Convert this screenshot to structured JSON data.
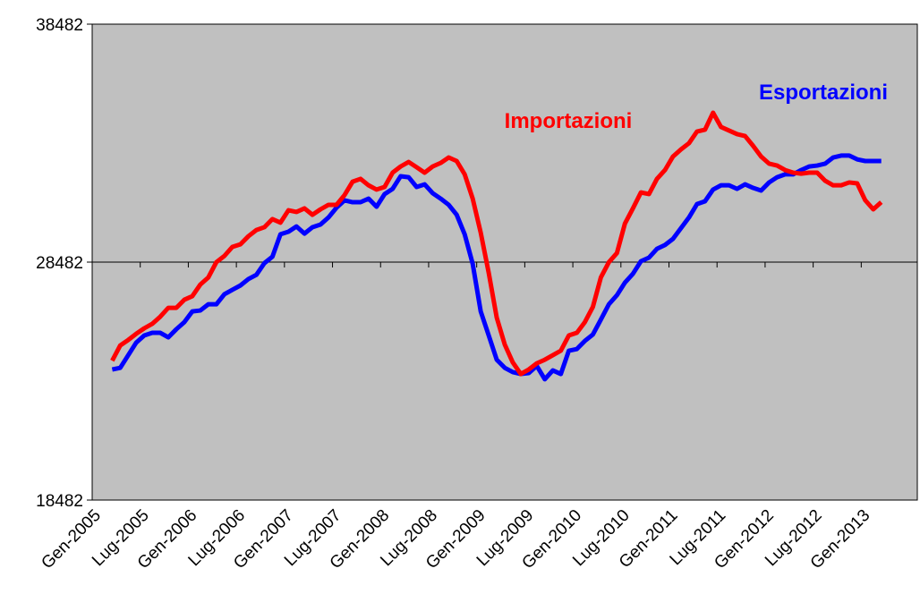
{
  "chart_data": {
    "type": "line",
    "categories": [
      "Gen-2005",
      null,
      null,
      null,
      null,
      null,
      "Lug-2005",
      null,
      null,
      null,
      null,
      null,
      "Gen-2006",
      null,
      null,
      null,
      null,
      null,
      "Lug-2006",
      null,
      null,
      null,
      null,
      null,
      "Gen-2007",
      null,
      null,
      null,
      null,
      null,
      "Lug-2007",
      null,
      null,
      null,
      null,
      null,
      "Gen-2008",
      null,
      null,
      null,
      null,
      null,
      "Lug-2008",
      null,
      null,
      null,
      null,
      null,
      "Gen-2009",
      null,
      null,
      null,
      null,
      null,
      "Lug-2009",
      null,
      null,
      null,
      null,
      null,
      "Gen-2010",
      null,
      null,
      null,
      null,
      null,
      "Lug-2010",
      null,
      null,
      null,
      null,
      null,
      "Gen-2011",
      null,
      null,
      null,
      null,
      null,
      "Lug-2011",
      null,
      null,
      null,
      null,
      null,
      "Gen-2012",
      null,
      null,
      null,
      null,
      null,
      "Lug-2012",
      null,
      null,
      null,
      null,
      null,
      "Gen-2013",
      null,
      null,
      null,
      null,
      null,
      null
    ],
    "series": [
      {
        "name": "Importazioni",
        "color": "#ff0000",
        "values": [
          null,
          null,
          24340,
          24980,
          25210,
          25470,
          25700,
          25890,
          26190,
          26560,
          26560,
          26900,
          27050,
          27540,
          27840,
          28480,
          28740,
          29120,
          29230,
          29570,
          29830,
          29950,
          30290,
          30140,
          30660,
          30590,
          30740,
          30470,
          30700,
          30890,
          30890,
          31300,
          31860,
          31980,
          31710,
          31530,
          31640,
          32240,
          32500,
          32690,
          32470,
          32240,
          32500,
          32650,
          32880,
          32730,
          32170,
          31150,
          29720,
          28030,
          26150,
          25020,
          24270,
          23780,
          23970,
          24230,
          24380,
          24570,
          24760,
          25400,
          25510,
          25960,
          26600,
          27840,
          28480,
          28860,
          30100,
          30740,
          31410,
          31340,
          31980,
          32350,
          32920,
          33220,
          33480,
          33970,
          34050,
          34760,
          34160,
          34010,
          33860,
          33780,
          33370,
          32920,
          32620,
          32540,
          32350,
          32240,
          32200,
          32240,
          32240,
          31900,
          31710,
          31710,
          31830,
          31790,
          31080,
          30700,
          31000,
          null,
          null,
          null,
          null
        ]
      },
      {
        "name": "Esportazioni",
        "color": "#0000ff",
        "values": [
          null,
          null,
          23970,
          24040,
          24570,
          25100,
          25400,
          25510,
          25510,
          25320,
          25660,
          25960,
          26410,
          26450,
          26710,
          26710,
          27130,
          27320,
          27500,
          27770,
          27950,
          28440,
          28710,
          29650,
          29760,
          29980,
          29680,
          29950,
          30060,
          30360,
          30770,
          31080,
          31000,
          31000,
          31150,
          30810,
          31340,
          31560,
          32090,
          32050,
          31640,
          31750,
          31380,
          31150,
          30890,
          30470,
          29650,
          28410,
          26410,
          25400,
          24380,
          24040,
          23860,
          23780,
          23820,
          24120,
          23560,
          23930,
          23780,
          24760,
          24830,
          25170,
          25440,
          26070,
          26710,
          27090,
          27620,
          27990,
          28520,
          28670,
          29040,
          29200,
          29460,
          29910,
          30360,
          30920,
          31040,
          31530,
          31710,
          31710,
          31560,
          31750,
          31600,
          31490,
          31830,
          32050,
          32170,
          32170,
          32350,
          32500,
          32540,
          32620,
          32880,
          32960,
          32960,
          32800,
          32730,
          32730,
          32730,
          null,
          null,
          null,
          null
        ]
      }
    ],
    "ylim": [
      18482,
      38482
    ],
    "yticks": [
      18482,
      28482,
      38482
    ],
    "xaxis_at": 28482,
    "plot_background": "#c0c0c0"
  }
}
